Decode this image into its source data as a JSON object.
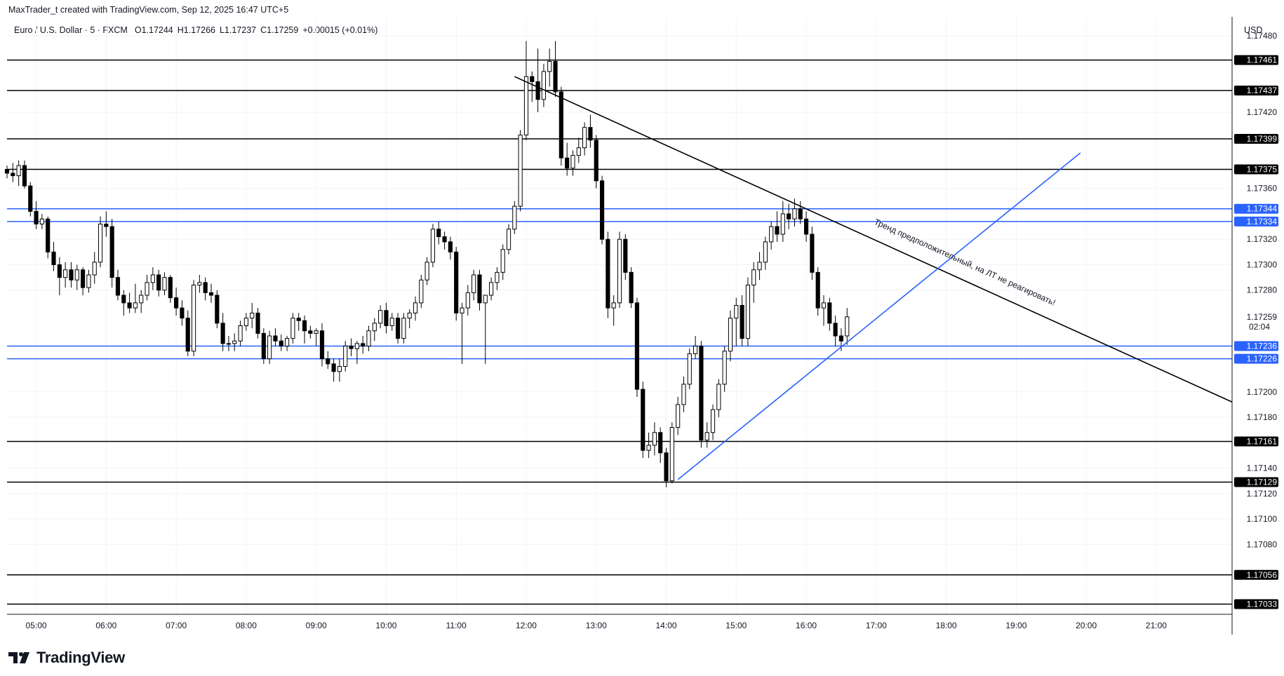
{
  "header": {
    "credit": "MaxTrader_t created with TradingView.com, Sep 12, 2025 16:47 UTC+5",
    "symbol": "Euro / U.S. Dollar · 5 · FXCM",
    "open": "O1.17244",
    "high": "H1.17266",
    "low": "L1.17237",
    "close": "C1.17259",
    "change": "+0.00015 (+0.01%)"
  },
  "currency": "USD",
  "logo_text": "TradingView",
  "countdown": "02:04",
  "colors": {
    "bull_body": "#ffffff",
    "bear_body": "#000000",
    "wick": "#000000",
    "grid": "#f0f3fa",
    "level_black": "#000000",
    "level_blue": "#2962ff",
    "trend_up": "#2962ff",
    "trend_down": "#000000"
  },
  "chart_data": {
    "type": "candlestick",
    "y_range": [
      1.17025,
      1.17495
    ],
    "y_ticks": [
      "1.17480",
      "1.17420",
      "1.17360",
      "1.17320",
      "1.17300",
      "1.17280",
      "1.17200",
      "1.17180",
      "1.17140",
      "1.17120",
      "1.17100",
      "1.17080"
    ],
    "x_range": [
      "04:35",
      "22:05"
    ],
    "x_ticks": [
      "05:00",
      "06:00",
      "07:00",
      "08:00",
      "09:00",
      "10:00",
      "11:00",
      "12:00",
      "13:00",
      "14:00",
      "15:00",
      "16:00",
      "17:00",
      "18:00",
      "19:00",
      "20:00",
      "21:00"
    ],
    "horizontal_levels": [
      {
        "price": "1.17461",
        "color": "black"
      },
      {
        "price": "1.17437",
        "color": "black"
      },
      {
        "price": "1.17399",
        "color": "black"
      },
      {
        "price": "1.17375",
        "color": "black"
      },
      {
        "price": "1.17344",
        "color": "blue"
      },
      {
        "price": "1.17334",
        "color": "blue"
      },
      {
        "price": "1.17236",
        "color": "blue"
      },
      {
        "price": "1.17226",
        "color": "blue"
      },
      {
        "price": "1.17161",
        "color": "black"
      },
      {
        "price": "1.17129",
        "color": "black"
      },
      {
        "price": "1.17056",
        "color": "black"
      },
      {
        "price": "1.17033",
        "color": "black"
      }
    ],
    "current_price": "1.17259",
    "trend_lines": [
      {
        "name": "downtrend",
        "color": "black",
        "from": [
          "11:50",
          1.17448
        ],
        "to": [
          "22:05",
          1.17192
        ]
      },
      {
        "name": "uptrend",
        "color": "blue",
        "from": [
          "14:10",
          1.17131
        ],
        "to": [
          "19:55",
          1.17388
        ]
      }
    ],
    "annotation": {
      "text": "Тренд предположительный, на ЛТ не реагировать!",
      "at": [
        "18:15",
        1.173
      ]
    },
    "candles": [
      [
        "04:35",
        1.17375,
        1.17378,
        1.17368,
        1.17372
      ],
      [
        "04:40",
        1.17372,
        1.1738,
        1.17365,
        1.1737
      ],
      [
        "04:45",
        1.1737,
        1.17382,
        1.17362,
        1.17378
      ],
      [
        "04:50",
        1.17378,
        1.17382,
        1.1736,
        1.17362
      ],
      [
        "04:55",
        1.17362,
        1.17365,
        1.17338,
        1.17342
      ],
      [
        "05:00",
        1.17342,
        1.1735,
        1.17328,
        1.17332
      ],
      [
        "05:05",
        1.17332,
        1.1734,
        1.17328,
        1.17336
      ],
      [
        "05:10",
        1.17336,
        1.17338,
        1.17305,
        1.1731
      ],
      [
        "05:15",
        1.1731,
        1.17318,
        1.17295,
        1.173
      ],
      [
        "05:20",
        1.173,
        1.17306,
        1.17276,
        1.1729
      ],
      [
        "05:25",
        1.1729,
        1.17302,
        1.17282,
        1.17296
      ],
      [
        "05:30",
        1.17296,
        1.17302,
        1.17282,
        1.17288
      ],
      [
        "05:35",
        1.17288,
        1.173,
        1.1728,
        1.17296
      ],
      [
        "05:40",
        1.17296,
        1.17298,
        1.17276,
        1.17282
      ],
      [
        "05:45",
        1.17282,
        1.17296,
        1.17278,
        1.17292
      ],
      [
        "05:50",
        1.17292,
        1.1731,
        1.17285,
        1.17302
      ],
      [
        "05:55",
        1.17302,
        1.17338,
        1.17298,
        1.17332
      ],
      [
        "06:00",
        1.17332,
        1.17342,
        1.17322,
        1.1733
      ],
      [
        "06:05",
        1.1733,
        1.17336,
        1.17282,
        1.1729
      ],
      [
        "06:10",
        1.1729,
        1.17296,
        1.17272,
        1.17276
      ],
      [
        "06:15",
        1.17276,
        1.1728,
        1.1726,
        1.1727
      ],
      [
        "06:20",
        1.1727,
        1.17278,
        1.17262,
        1.17266
      ],
      [
        "06:25",
        1.17266,
        1.17285,
        1.17262,
        1.1727
      ],
      [
        "06:30",
        1.1727,
        1.1728,
        1.17262,
        1.17276
      ],
      [
        "06:35",
        1.17276,
        1.17292,
        1.17272,
        1.17286
      ],
      [
        "06:40",
        1.17286,
        1.17298,
        1.1728,
        1.17292
      ],
      [
        "06:45",
        1.17292,
        1.17296,
        1.17275,
        1.1728
      ],
      [
        "06:50",
        1.1728,
        1.17294,
        1.17276,
        1.1729
      ],
      [
        "06:55",
        1.1729,
        1.17292,
        1.1727,
        1.17274
      ],
      [
        "07:00",
        1.17274,
        1.17282,
        1.1726,
        1.17266
      ],
      [
        "07:05",
        1.17266,
        1.17272,
        1.17252,
        1.17258
      ],
      [
        "07:10",
        1.17258,
        1.17264,
        1.17228,
        1.17232
      ],
      [
        "07:15",
        1.17232,
        1.17288,
        1.17228,
        1.17284
      ],
      [
        "07:20",
        1.17284,
        1.17292,
        1.17278,
        1.17286
      ],
      [
        "07:25",
        1.17286,
        1.1729,
        1.17272,
        1.17278
      ],
      [
        "07:30",
        1.17278,
        1.17285,
        1.1727,
        1.17276
      ],
      [
        "07:35",
        1.17276,
        1.1728,
        1.1725,
        1.17254
      ],
      [
        "07:40",
        1.17254,
        1.17262,
        1.17232,
        1.17238
      ],
      [
        "07:45",
        1.17238,
        1.17244,
        1.17232,
        1.17238
      ],
      [
        "07:50",
        1.17238,
        1.17246,
        1.17232,
        1.1724
      ],
      [
        "07:55",
        1.1724,
        1.17256,
        1.17236,
        1.17252
      ],
      [
        "08:00",
        1.17252,
        1.17262,
        1.17248,
        1.17258
      ],
      [
        "08:05",
        1.17258,
        1.1727,
        1.1725,
        1.17262
      ],
      [
        "08:10",
        1.17262,
        1.17266,
        1.17242,
        1.17246
      ],
      [
        "08:15",
        1.17246,
        1.1725,
        1.17222,
        1.17226
      ],
      [
        "08:20",
        1.17226,
        1.17248,
        1.17222,
        1.17244
      ],
      [
        "08:25",
        1.17244,
        1.1725,
        1.17236,
        1.1724
      ],
      [
        "08:30",
        1.1724,
        1.17245,
        1.17232,
        1.17236
      ],
      [
        "08:35",
        1.17236,
        1.17244,
        1.17232,
        1.17242
      ],
      [
        "08:40",
        1.17242,
        1.17262,
        1.17238,
        1.17258
      ],
      [
        "08:45",
        1.17258,
        1.17262,
        1.17248,
        1.17256
      ],
      [
        "08:50",
        1.17256,
        1.1726,
        1.17238,
        1.17248
      ],
      [
        "08:55",
        1.17248,
        1.17252,
        1.17242,
        1.17246
      ],
      [
        "09:00",
        1.17246,
        1.1725,
        1.17236,
        1.17248
      ],
      [
        "09:05",
        1.17248,
        1.17254,
        1.1722,
        1.17226
      ],
      [
        "09:10",
        1.17226,
        1.17232,
        1.17218,
        1.17222
      ],
      [
        "09:15",
        1.17222,
        1.17226,
        1.17208,
        1.17216
      ],
      [
        "09:20",
        1.17216,
        1.17226,
        1.17208,
        1.1722
      ],
      [
        "09:25",
        1.1722,
        1.1724,
        1.17216,
        1.17236
      ],
      [
        "09:30",
        1.17236,
        1.17242,
        1.17228,
        1.17234
      ],
      [
        "09:35",
        1.17234,
        1.1724,
        1.17222,
        1.17238
      ],
      [
        "09:40",
        1.17238,
        1.17244,
        1.1723,
        1.17236
      ],
      [
        "09:45",
        1.17236,
        1.17252,
        1.17232,
        1.17248
      ],
      [
        "09:50",
        1.17248,
        1.17258,
        1.1724,
        1.17254
      ],
      [
        "09:55",
        1.17254,
        1.17268,
        1.1725,
        1.17264
      ],
      [
        "10:00",
        1.17264,
        1.1727,
        1.17246,
        1.17252
      ],
      [
        "10:05",
        1.17252,
        1.17262,
        1.17248,
        1.17258
      ],
      [
        "10:10",
        1.17258,
        1.17262,
        1.17238,
        1.17242
      ],
      [
        "10:15",
        1.17242,
        1.17262,
        1.17238,
        1.17258
      ],
      [
        "10:20",
        1.17258,
        1.17265,
        1.1725,
        1.17262
      ],
      [
        "10:25",
        1.17262,
        1.17275,
        1.17256,
        1.1727
      ],
      [
        "10:30",
        1.1727,
        1.17292,
        1.17266,
        1.17288
      ],
      [
        "10:35",
        1.17288,
        1.17306,
        1.17284,
        1.17302
      ],
      [
        "10:40",
        1.17302,
        1.17332,
        1.17298,
        1.17328
      ],
      [
        "10:45",
        1.17328,
        1.17334,
        1.17316,
        1.17322
      ],
      [
        "10:50",
        1.17322,
        1.17326,
        1.17312,
        1.17318
      ],
      [
        "10:55",
        1.17318,
        1.17322,
        1.17304,
        1.1731
      ],
      [
        "11:00",
        1.1731,
        1.17314,
        1.17256,
        1.17262
      ],
      [
        "11:05",
        1.17262,
        1.1727,
        1.17222,
        1.17266
      ],
      [
        "11:10",
        1.17266,
        1.17284,
        1.1726,
        1.17278
      ],
      [
        "11:15",
        1.17278,
        1.17296,
        1.17272,
        1.17292
      ],
      [
        "11:20",
        1.17292,
        1.17296,
        1.17264,
        1.1727
      ],
      [
        "11:25",
        1.1727,
        1.17276,
        1.17222,
        1.17276
      ],
      [
        "11:30",
        1.17276,
        1.1729,
        1.17272,
        1.17286
      ],
      [
        "11:35",
        1.17286,
        1.17298,
        1.1728,
        1.17294
      ],
      [
        "11:40",
        1.17294,
        1.17316,
        1.17288,
        1.17312
      ],
      [
        "11:45",
        1.17312,
        1.17332,
        1.17308,
        1.17328
      ],
      [
        "11:50",
        1.17328,
        1.1735,
        1.17324,
        1.17346
      ],
      [
        "11:55",
        1.17346,
        1.17406,
        1.17342,
        1.17402
      ],
      [
        "12:00",
        1.17402,
        1.17476,
        1.17398,
        1.17448
      ],
      [
        "12:05",
        1.17448,
        1.17452,
        1.17428,
        1.17444
      ],
      [
        "12:10",
        1.17444,
        1.1747,
        1.1742,
        1.1743
      ],
      [
        "12:15",
        1.1743,
        1.17458,
        1.17424,
        1.17452
      ],
      [
        "12:20",
        1.17452,
        1.1747,
        1.1744,
        1.1746
      ],
      [
        "12:25",
        1.1746,
        1.17476,
        1.17432,
        1.17436
      ],
      [
        "12:30",
        1.17436,
        1.1744,
        1.17378,
        1.17384
      ],
      [
        "12:35",
        1.17384,
        1.17396,
        1.1737,
        1.17376
      ],
      [
        "12:40",
        1.17376,
        1.1739,
        1.1737,
        1.17386
      ],
      [
        "12:45",
        1.17386,
        1.174,
        1.1738,
        1.17392
      ],
      [
        "12:50",
        1.17392,
        1.17412,
        1.17386,
        1.17408
      ],
      [
        "12:55",
        1.17408,
        1.17418,
        1.17392,
        1.17398
      ],
      [
        "13:00",
        1.17398,
        1.17402,
        1.1736,
        1.17366
      ],
      [
        "13:05",
        1.17366,
        1.1737,
        1.17316,
        1.1732
      ],
      [
        "13:10",
        1.1732,
        1.17326,
        1.17258,
        1.17266
      ],
      [
        "13:15",
        1.17266,
        1.17276,
        1.17252,
        1.1727
      ],
      [
        "13:20",
        1.1727,
        1.17326,
        1.17266,
        1.1732
      ],
      [
        "13:25",
        1.1732,
        1.17324,
        1.17288,
        1.17294
      ],
      [
        "13:30",
        1.17294,
        1.17298,
        1.17266,
        1.1727
      ],
      [
        "13:35",
        1.1727,
        1.17274,
        1.17196,
        1.17202
      ],
      [
        "13:40",
        1.17202,
        1.17208,
        1.17148,
        1.17154
      ],
      [
        "13:45",
        1.17154,
        1.17168,
        1.17148,
        1.17158
      ],
      [
        "13:50",
        1.17158,
        1.17176,
        1.1715,
        1.17168
      ],
      [
        "13:55",
        1.17168,
        1.17172,
        1.17144,
        1.17152
      ],
      [
        "14:00",
        1.17152,
        1.17156,
        1.17125,
        1.1713
      ],
      [
        "14:05",
        1.1713,
        1.17176,
        1.17128,
        1.17172
      ],
      [
        "14:10",
        1.17172,
        1.17196,
        1.17166,
        1.1719
      ],
      [
        "14:15",
        1.1719,
        1.17212,
        1.17184,
        1.17206
      ],
      [
        "14:20",
        1.17206,
        1.17234,
        1.17202,
        1.1723
      ],
      [
        "14:25",
        1.1723,
        1.17244,
        1.17226,
        1.17236
      ],
      [
        "14:30",
        1.17236,
        1.1724,
        1.17156,
        1.17162
      ],
      [
        "14:35",
        1.17162,
        1.17176,
        1.17156,
        1.17168
      ],
      [
        "14:40",
        1.17168,
        1.1719,
        1.17162,
        1.17186
      ],
      [
        "14:45",
        1.17186,
        1.1721,
        1.1718,
        1.17206
      ],
      [
        "14:50",
        1.17206,
        1.17236,
        1.172,
        1.17232
      ],
      [
        "14:55",
        1.17232,
        1.17264,
        1.17224,
        1.17258
      ],
      [
        "15:00",
        1.17258,
        1.17274,
        1.17236,
        1.17268
      ],
      [
        "15:05",
        1.17268,
        1.17276,
        1.17236,
        1.17242
      ],
      [
        "15:10",
        1.17242,
        1.1729,
        1.17236,
        1.17284
      ],
      [
        "15:15",
        1.17284,
        1.17302,
        1.1727,
        1.17296
      ],
      [
        "15:20",
        1.17296,
        1.1731,
        1.17288,
        1.17302
      ],
      [
        "15:25",
        1.17302,
        1.17322,
        1.17296,
        1.17318
      ],
      [
        "15:30",
        1.17318,
        1.17334,
        1.17312,
        1.1733
      ],
      [
        "15:35",
        1.1733,
        1.17342,
        1.17318,
        1.17324
      ],
      [
        "15:40",
        1.17324,
        1.1735,
        1.17318,
        1.1734
      ],
      [
        "15:45",
        1.1734,
        1.17348,
        1.17328,
        1.17336
      ],
      [
        "15:50",
        1.17336,
        1.17352,
        1.1733,
        1.17344
      ],
      [
        "15:55",
        1.17344,
        1.1735,
        1.17332,
        1.17336
      ],
      [
        "16:00",
        1.17336,
        1.17342,
        1.17318,
        1.17324
      ],
      [
        "16:05",
        1.17324,
        1.1733,
        1.17288,
        1.17294
      ],
      [
        "16:10",
        1.17294,
        1.17298,
        1.1726,
        1.17266
      ],
      [
        "16:15",
        1.17266,
        1.17276,
        1.17252,
        1.1727
      ],
      [
        "16:20",
        1.1727,
        1.17274,
        1.17248,
        1.17254
      ],
      [
        "16:25",
        1.17254,
        1.1726,
        1.17236,
        1.17244
      ],
      [
        "16:30",
        1.17244,
        1.1725,
        1.17232,
        1.1724
      ],
      [
        "16:35",
        1.17244,
        1.17266,
        1.17237,
        1.17259
      ]
    ]
  }
}
